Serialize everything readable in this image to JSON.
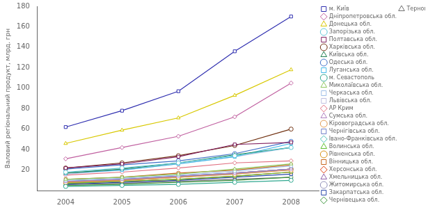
{
  "chart_data": {
    "type": "line",
    "y_label": "Валовий регіональний продукт, млрд. грн",
    "x": [
      2004,
      2005,
      2006,
      2007,
      2008
    ],
    "xlim": [
      2003.5,
      2008.5
    ],
    "xticks": [
      2004,
      2005,
      2006,
      2007,
      2008
    ],
    "ylim": [
      0,
      180
    ],
    "yticks": [
      20,
      40,
      60,
      80,
      100,
      120,
      140,
      160,
      180
    ],
    "grid": false,
    "legend": "right",
    "series": [
      {
        "name": "м. Київ",
        "color": "#3030b0",
        "marker": "square",
        "values": [
          62,
          78,
          97,
          136,
          170
        ]
      },
      {
        "name": "Дніпропетровська обл.",
        "color": "#c060a0",
        "marker": "diamond",
        "values": [
          31,
          42,
          53,
          72,
          105
        ]
      },
      {
        "name": "Донецька обл.",
        "color": "#d8c800",
        "marker": "triangle",
        "values": [
          46,
          59,
          71,
          93,
          118
        ]
      },
      {
        "name": "Запорізька обл.",
        "color": "#60c8d8",
        "marker": "circle",
        "values": [
          18,
          22,
          27,
          34,
          42
        ]
      },
      {
        "name": "Полтавська обл.",
        "color": "#802060",
        "marker": "square",
        "values": [
          22,
          26,
          33,
          45,
          47
        ]
      },
      {
        "name": "Харківська обл.",
        "color": "#703010",
        "marker": "circle",
        "values": [
          22,
          27,
          34,
          44,
          60
        ]
      },
      {
        "name": "Київська обл.",
        "color": "#208050",
        "marker": "triangle",
        "values": [
          17,
          21,
          27,
          35,
          42
        ]
      },
      {
        "name": "Одеська обл.",
        "color": "#4070c8",
        "marker": "circle",
        "values": [
          21,
          25,
          29,
          36,
          48
        ]
      },
      {
        "name": "Луганська обл.",
        "color": "#40b8e8",
        "marker": "square",
        "values": [
          17,
          20,
          26,
          33,
          46
        ]
      },
      {
        "name": "м. Севастополь",
        "color": "#30a890",
        "marker": "circle",
        "values": [
          4,
          5,
          6,
          8,
          10
        ]
      },
      {
        "name": "Миколаївська обл.",
        "color": "#90c860",
        "marker": "triangle",
        "values": [
          11,
          13,
          16,
          21,
          26
        ]
      },
      {
        "name": "Черкаська обл.",
        "color": "#a0c0e8",
        "marker": "square",
        "values": [
          10,
          12,
          15,
          19,
          24
        ]
      },
      {
        "name": "Львівська обл.",
        "color": "#c0c0e0",
        "marker": "square",
        "values": [
          16,
          20,
          26,
          33,
          42
        ]
      },
      {
        "name": "АР Крим",
        "color": "#e07080",
        "marker": "diamond",
        "values": [
          15,
          18,
          22,
          27,
          29
        ]
      },
      {
        "name": "Сумська обл.",
        "color": "#b080c0",
        "marker": "triangle",
        "values": [
          9,
          11,
          14,
          17,
          21
        ]
      },
      {
        "name": "Кіровоградська обл.",
        "color": "#e09850",
        "marker": "circle",
        "values": [
          8,
          10,
          13,
          16,
          20
        ]
      },
      {
        "name": "Чернігівська обл.",
        "color": "#7080c8",
        "marker": "square",
        "values": [
          9,
          11,
          14,
          17,
          21
        ]
      },
      {
        "name": "Івано-Франківська обл.",
        "color": "#50c0b8",
        "marker": "diamond",
        "values": [
          9,
          11,
          14,
          17,
          21
        ]
      },
      {
        "name": "Волинська обл.",
        "color": "#60c030",
        "marker": "triangle",
        "values": [
          7,
          9,
          11,
          14,
          18
        ]
      },
      {
        "name": "Рівненська обл.",
        "color": "#d89010",
        "marker": "circle",
        "values": [
          8,
          10,
          13,
          17,
          21
        ]
      },
      {
        "name": "Вінницька обл.",
        "color": "#c86820",
        "marker": "square",
        "values": [
          11,
          13,
          17,
          20,
          25
        ]
      },
      {
        "name": "Херсонська обл.",
        "color": "#e04010",
        "marker": "diamond",
        "values": [
          7,
          9,
          11,
          14,
          18
        ]
      },
      {
        "name": "Хмельницька обл.",
        "color": "#9060a8",
        "marker": "triangle",
        "values": [
          9,
          11,
          14,
          17,
          21
        ]
      },
      {
        "name": "Житомирська обл.",
        "color": "#9090b8",
        "marker": "circle",
        "values": [
          8,
          10,
          13,
          16,
          21
        ]
      },
      {
        "name": "Закарпатська обл.",
        "color": "#2848a8",
        "marker": "square",
        "values": [
          6,
          8,
          10,
          13,
          16
        ]
      },
      {
        "name": "Чернівецька обл.",
        "color": "#409840",
        "marker": "diamond",
        "values": [
          5,
          6,
          8,
          10,
          13
        ]
      },
      {
        "name": "Тернопільська обл.",
        "color": "#707070",
        "marker": "triangle",
        "values": [
          6,
          7,
          9,
          11,
          13
        ]
      }
    ]
  }
}
